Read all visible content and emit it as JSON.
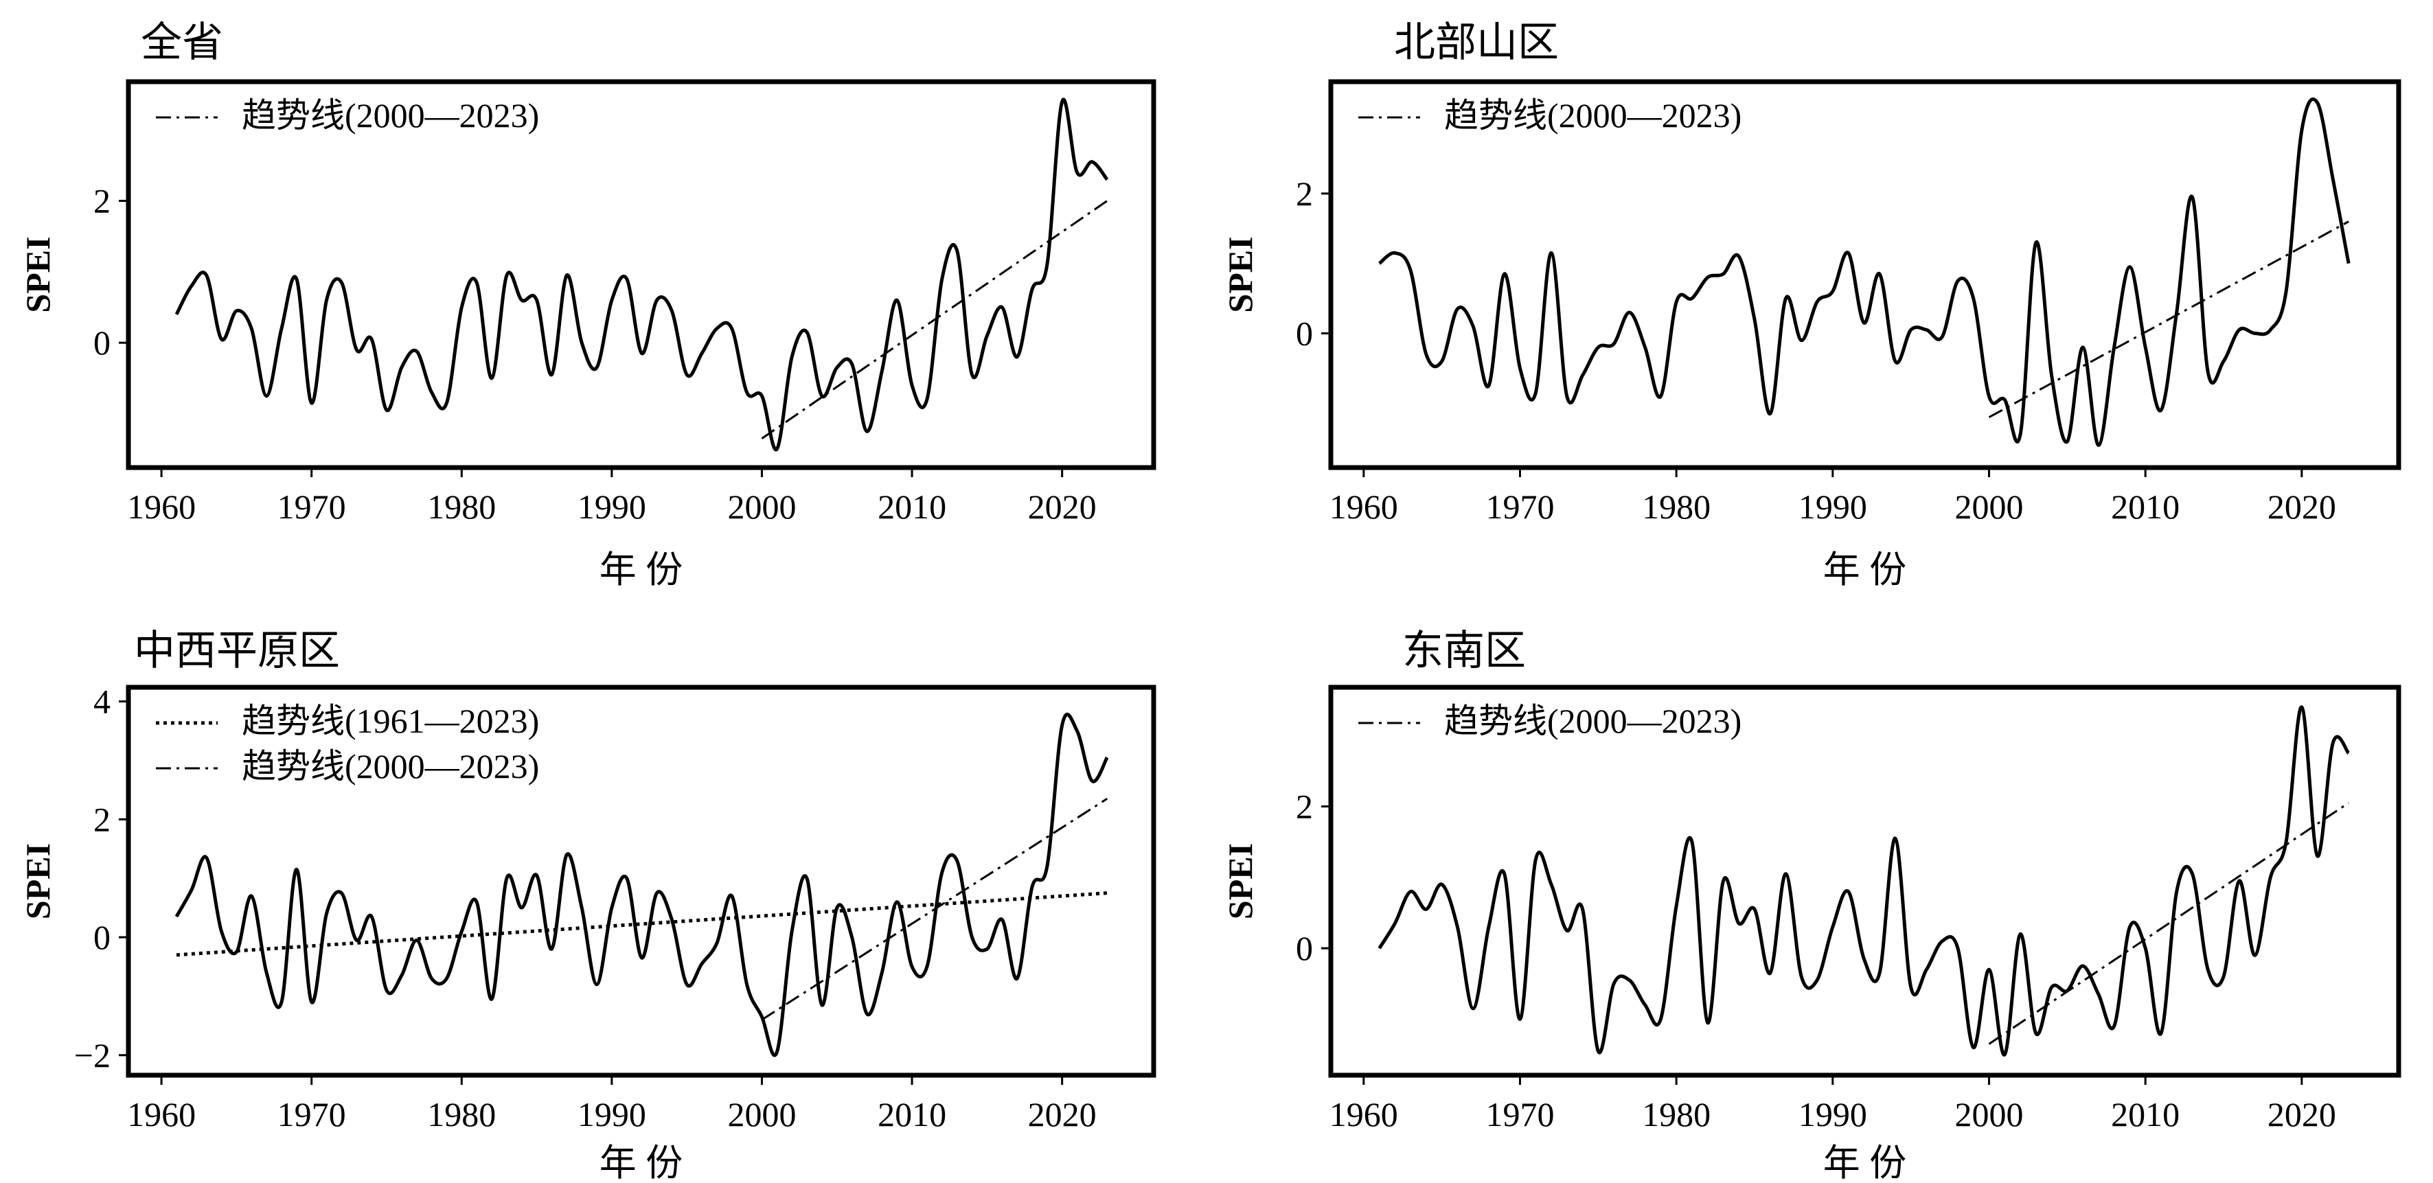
{
  "chart_data": [
    {
      "type": "line",
      "title": "全省",
      "xlabel": "年  份",
      "ylabel": "SPEI",
      "xlim": [
        1957.8,
        2026.1
      ],
      "ylim": [
        -1.76,
        3.68
      ],
      "xticks": [
        1960,
        1970,
        1980,
        1990,
        2000,
        2010,
        2020
      ],
      "yticks": [
        0,
        2
      ],
      "x_start": 1961,
      "series": [
        {
          "name": "SPEI",
          "style": "solid",
          "values": [
            0.4,
            0.8,
            0.95,
            0.05,
            0.45,
            0.2,
            -0.75,
            0.2,
            0.9,
            -0.85,
            0.6,
            0.85,
            -0.1,
            0.05,
            -0.95,
            -0.35,
            -0.12,
            -0.7,
            -0.85,
            0.5,
            0.85,
            -0.5,
            0.95,
            0.6,
            0.6,
            -0.45,
            0.95,
            0.0,
            -0.35,
            0.6,
            0.9,
            -0.15,
            0.6,
            0.45,
            -0.45,
            -0.15,
            0.2,
            0.2,
            -0.7,
            -0.75,
            -1.5,
            -0.2,
            0.15,
            -0.75,
            -0.35,
            -0.3,
            -1.25,
            -0.4,
            0.6,
            -0.6,
            -0.8,
            0.9,
            1.3,
            -0.45,
            0.1,
            0.5,
            -0.2,
            0.75,
            1.1,
            3.4,
            2.4,
            2.55,
            2.3
          ]
        }
      ],
      "trends": [
        {
          "label": "趋势线(2000—2023)",
          "style": "dashdot",
          "x": [
            2000,
            2023
          ],
          "y": [
            -1.35,
            2.0
          ]
        }
      ],
      "legend": "top-left"
    },
    {
      "type": "line",
      "title": "北部山区",
      "xlabel": "年  份",
      "ylabel": "SPEI",
      "xlim": [
        1957.9,
        2026.2
      ],
      "ylim": [
        -1.92,
        3.6
      ],
      "xticks": [
        1960,
        1970,
        1980,
        1990,
        2000,
        2010,
        2020
      ],
      "yticks": [
        0,
        2
      ],
      "x_start": 1961,
      "series": [
        {
          "name": "SPEI",
          "style": "solid",
          "values": [
            1.0,
            1.15,
            0.9,
            -0.3,
            -0.4,
            0.35,
            0.1,
            -0.75,
            0.85,
            -0.5,
            -0.85,
            1.15,
            -0.9,
            -0.6,
            -0.2,
            -0.15,
            0.3,
            -0.2,
            -0.9,
            0.45,
            0.5,
            0.8,
            0.85,
            1.1,
            0.2,
            -1.15,
            0.5,
            -0.1,
            0.45,
            0.6,
            1.15,
            0.15,
            0.85,
            -0.4,
            0.05,
            0.05,
            -0.05,
            0.75,
            0.5,
            -0.9,
            -0.95,
            -1.45,
            1.3,
            -0.6,
            -1.55,
            -0.2,
            -1.6,
            -0.2,
            0.95,
            -0.2,
            -1.1,
            0.3,
            1.95,
            -0.55,
            -0.4,
            0.05,
            0.0,
            0.05,
            0.6,
            2.9,
            3.3,
            2.2,
            1.0
          ]
        }
      ],
      "trends": [
        {
          "label": "趋势线(2000—2023)",
          "style": "dashdot",
          "x": [
            2000,
            2023
          ],
          "y": [
            -1.2,
            1.6
          ]
        }
      ],
      "legend": "top-left"
    },
    {
      "type": "line",
      "title": "中西平原区",
      "xlabel": "年  份",
      "ylabel": "SPEI",
      "xlim": [
        1957.8,
        2026.1
      ],
      "ylim": [
        -2.34,
        4.24
      ],
      "xticks": [
        1960,
        1970,
        1980,
        1990,
        2000,
        2010,
        2020
      ],
      "yticks": [
        -2,
        0,
        2,
        4
      ],
      "x_start": 1961,
      "series": [
        {
          "name": "SPEI",
          "style": "solid",
          "values": [
            0.35,
            0.8,
            1.35,
            0.1,
            -0.25,
            0.7,
            -0.6,
            -1.1,
            1.15,
            -1.1,
            0.4,
            0.75,
            -0.05,
            0.35,
            -0.9,
            -0.65,
            -0.05,
            -0.7,
            -0.7,
            0.1,
            0.6,
            -1.05,
            1.0,
            0.5,
            1.05,
            -0.2,
            1.4,
            0.5,
            -0.8,
            0.5,
            1.0,
            -0.35,
            0.75,
            0.3,
            -0.8,
            -0.45,
            -0.1,
            0.7,
            -0.8,
            -1.35,
            -1.95,
            0.1,
            1.0,
            -1.15,
            0.5,
            0.0,
            -1.3,
            -0.6,
            0.6,
            -0.5,
            -0.5,
            1.1,
            1.3,
            0.0,
            -0.2,
            0.3,
            -0.7,
            0.85,
            1.2,
            3.6,
            3.5,
            2.65,
            3.05
          ]
        }
      ],
      "trends": [
        {
          "label": "趋势线(1961—2023)",
          "style": "dotted",
          "x": [
            1961,
            2023
          ],
          "y": [
            -0.3,
            0.75
          ]
        },
        {
          "label": "趋势线(2000—2023)",
          "style": "dashdot",
          "x": [
            2000,
            2023
          ],
          "y": [
            -1.4,
            2.35
          ]
        }
      ],
      "legend": "top-left"
    },
    {
      "type": "line",
      "title": "东南区",
      "xlabel": "年  份",
      "ylabel": "SPEI",
      "xlim": [
        1957.9,
        2026.2
      ],
      "ylim": [
        -1.79,
        3.68
      ],
      "xticks": [
        1960,
        1970,
        1980,
        1990,
        2000,
        2010,
        2020
      ],
      "yticks": [
        0,
        2
      ],
      "x_start": 1961,
      "series": [
        {
          "name": "SPEI",
          "style": "solid",
          "values": [
            0.0,
            0.35,
            0.8,
            0.55,
            0.9,
            0.3,
            -0.85,
            0.3,
            1.05,
            -1.0,
            1.25,
            0.9,
            0.25,
            0.55,
            -1.45,
            -0.5,
            -0.45,
            -0.8,
            -1.0,
            0.6,
            1.5,
            -1.05,
            0.95,
            0.35,
            0.55,
            -0.35,
            1.05,
            -0.4,
            -0.45,
            0.3,
            0.8,
            -0.15,
            -0.35,
            1.55,
            -0.55,
            -0.3,
            0.1,
            0.0,
            -1.4,
            -0.3,
            -1.5,
            0.2,
            -1.2,
            -0.55,
            -0.6,
            -0.25,
            -0.65,
            -1.1,
            0.3,
            0.0,
            -1.2,
            0.8,
            1.05,
            -0.3,
            -0.4,
            0.95,
            -0.1,
            1.0,
            1.5,
            3.4,
            1.3,
            2.9,
            2.75
          ]
        }
      ],
      "trends": [
        {
          "label": "趋势线(2000—2023)",
          "style": "dashdot",
          "x": [
            2000,
            2023
          ],
          "y": [
            -1.35,
            2.05
          ]
        }
      ],
      "legend": "top-left"
    }
  ]
}
